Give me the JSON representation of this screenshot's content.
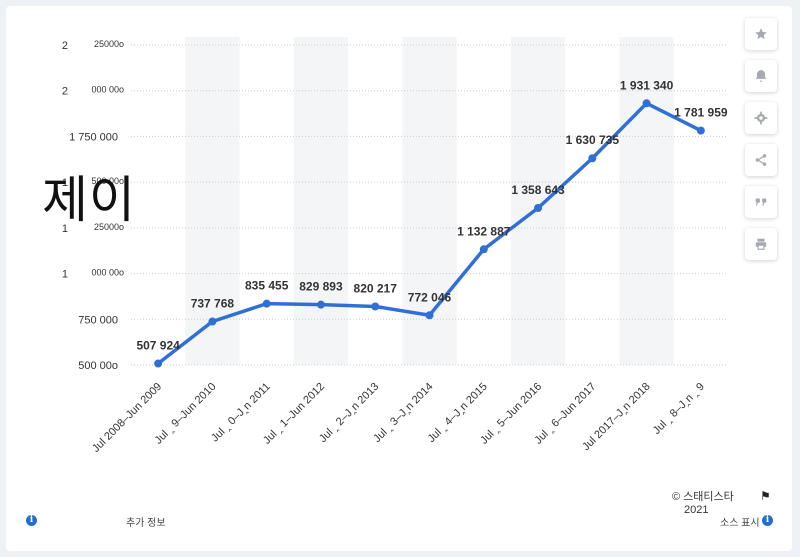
{
  "chart_data": {
    "type": "line",
    "categories": [
      "Jul 2008–Jun 2009",
      "Jul 2009–Jun 2010",
      "Jul 2010–Jun 2011",
      "Jul 2011–Jun 2012",
      "Jul 2012–Jun 2013",
      "Jul 2013–Jun 2014",
      "Jul 2014–Jun 2015",
      "Jul 2015–Jun 2016",
      "Jul 2016–Jun 2017",
      "Jul 2017–Jun 2018",
      "Jul 2018–Jun 2019"
    ],
    "category_labels": [
      "Jul 2008–Jun 2009",
      "Jul ‸ 9–Jun 2010",
      "Jul ‸ 0–J‸n 2011",
      "Jul ‸ 1–Jun 2012",
      "Jul ‸ 2–J‸n 2013",
      "Jul ‸ 3–J‸n 2014",
      "Jul ‸ 4–J‸n 2015",
      "Jul ‸ 5–Jun 2016",
      "Jul ‸ 6–Jun 2017",
      "Jul 2017–J‸n 2018",
      "Jul ‸ 8–J‸n ‸ 9"
    ],
    "series": [
      {
        "values": [
          507924,
          737768,
          835455,
          829893,
          820217,
          772046,
          1132887,
          1358643,
          1630735,
          1931340,
          1781959
        ],
        "color": "#2f6fd6"
      }
    ],
    "data_labels": [
      "507 924",
      "737 768",
      "835 455",
      "829 893",
      "820 217",
      "772 046",
      "1 132 887",
      "1 358 643",
      "1 630 735",
      "1 931 340",
      "1 781 959"
    ],
    "yticks": [
      500000,
      750000,
      1000000,
      1250000,
      1500000,
      1750000,
      2000000,
      2250000
    ],
    "ytick_labels": [
      [
        "500 00o"
      ],
      [
        "750 000"
      ],
      [
        "1",
        "000 00o"
      ],
      [
        "1",
        "25000o"
      ],
      [
        "1",
        "500 00o"
      ],
      [
        "1 750 000"
      ],
      [
        "2",
        "000 00o"
      ],
      [
        "2",
        "25000o"
      ]
    ],
    "ylim": [
      500000,
      2250000
    ],
    "grid": true,
    "ylabel": "제이"
  },
  "toolbar": {
    "icons": [
      "star-icon",
      "bell-icon",
      "gear-icon",
      "share-icon",
      "quote-icon",
      "print-icon"
    ]
  },
  "footer": {
    "credit": "© 스태티스타",
    "year": "2021",
    "more_info": "추가 정보",
    "show_source": "소스 표시"
  }
}
